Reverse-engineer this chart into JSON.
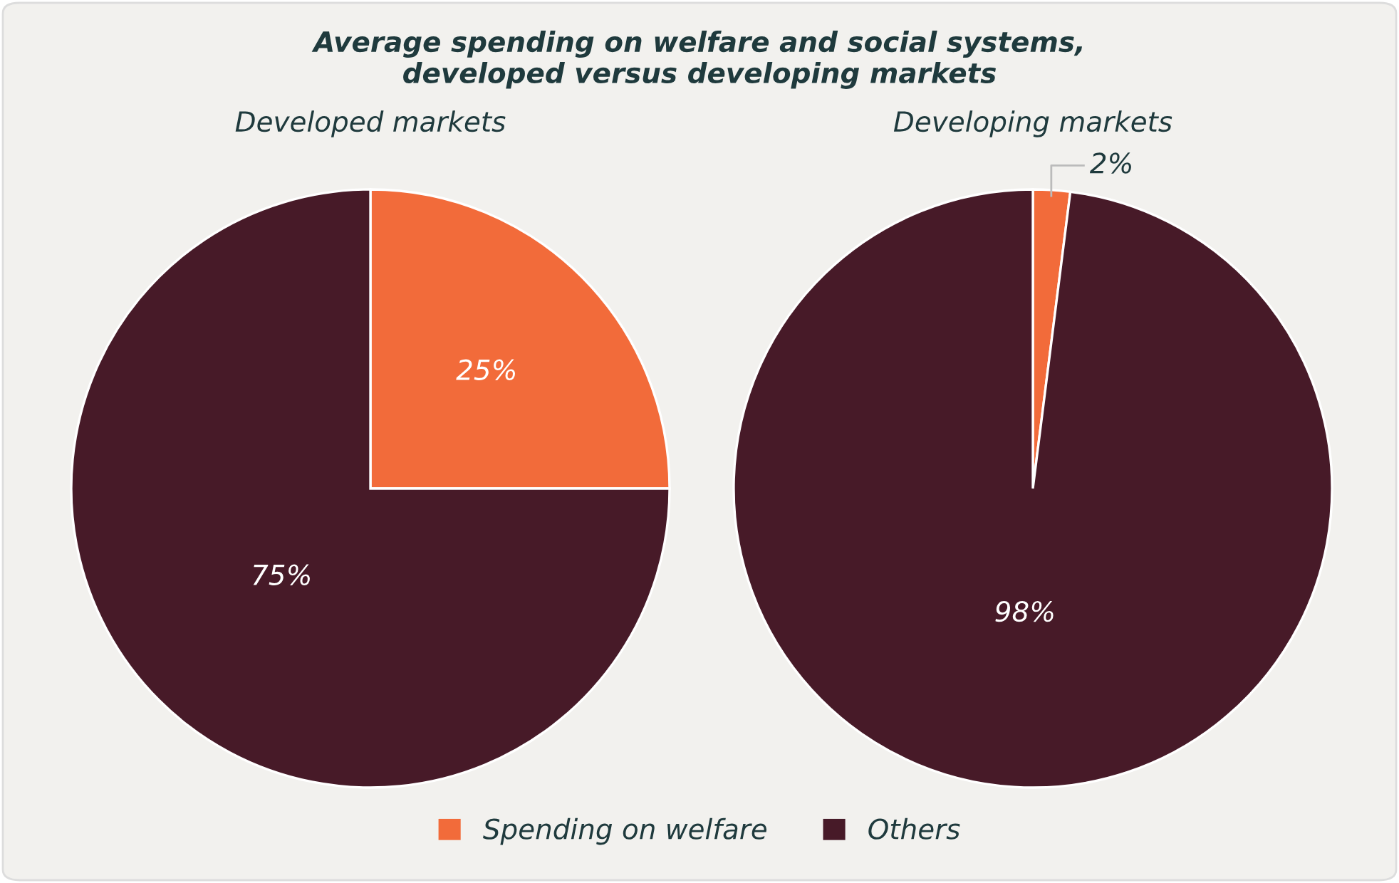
{
  "chart_data": [
    {
      "type": "pie",
      "title": "Average spending on welfare and social systems,\ndeveloped versus developing markets",
      "subtitle": "Developed markets",
      "categories": [
        "Spending on welfare",
        "Others"
      ],
      "values": [
        25,
        75
      ],
      "value_labels": [
        "25%",
        "75%"
      ],
      "colors": [
        "#f26b3a",
        "#471a28"
      ],
      "legend": "bottom"
    },
    {
      "type": "pie",
      "subtitle": "Developing markets",
      "values": [
        2,
        98
      ],
      "value_labels": [
        "2%",
        "98%"
      ],
      "colors": [
        "#f26b3a",
        "#471a28"
      ]
    }
  ]
}
